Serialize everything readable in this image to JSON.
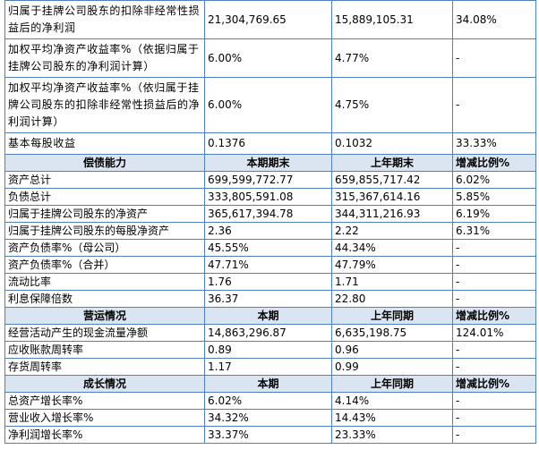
{
  "top_rows": [
    [
      "归属于挂牌公司股东的扣除非经常性损益后的净利润",
      "21,304,769.65",
      "15,889,105.31",
      "34.08%"
    ],
    [
      "加权平均净资产收益率%（依据归属于挂牌公司股东的净利润计算）",
      "6.00%",
      "4.77%",
      "-"
    ],
    [
      "加权平均净资产收益率%（依归属于挂牌公司股东的扣除非经常性损益后的净利润计算）",
      "6.00%",
      "4.75%",
      "-"
    ],
    [
      "基本每股收益",
      "0.1376",
      "0.1032",
      "33.33%"
    ]
  ],
  "sections": [
    {
      "header": [
        "偿债能力",
        "本期期末",
        "上年期末",
        "增减比例%"
      ],
      "rows": [
        [
          "资产总计",
          "699,599,772.77",
          "659,855,717.42",
          "6.02%"
        ],
        [
          "负债总计",
          "333,805,591.08",
          "315,367,614.16",
          "5.85%"
        ],
        [
          "归属于挂牌公司股东的净资产",
          "365,617,394.78",
          "344,311,216.93",
          "6.19%"
        ],
        [
          "归属于挂牌公司股东的每股净资产",
          "2.36",
          "2.22",
          "6.31%"
        ],
        [
          "资产负债率%（母公司）",
          "45.55%",
          "44.34%",
          "-"
        ],
        [
          "资产负债率%（合并）",
          "47.71%",
          "47.79%",
          "-"
        ],
        [
          "流动比率",
          "1.76",
          "1.71",
          "-"
        ],
        [
          "利息保障倍数",
          "36.37",
          "22.80",
          "-"
        ]
      ]
    },
    {
      "header": [
        "营运情况",
        "本期",
        "上年同期",
        "增减比例%"
      ],
      "rows": [
        [
          "经营活动产生的现金流量净额",
          "14,863,296.87",
          "6,635,198.75",
          "124.01%"
        ],
        [
          "应收账款周转率",
          "0.89",
          "0.96",
          "-"
        ],
        [
          "存货周转率",
          "1.17",
          "0.99",
          "-"
        ]
      ]
    },
    {
      "header": [
        "成长情况",
        "本期",
        "上年同期",
        "增减比例%"
      ],
      "rows": [
        [
          "总资产增长率%",
          "6.02%",
          "4.14%",
          "-"
        ],
        [
          "营业收入增长率%",
          "34.32%",
          "14.43%",
          "-"
        ],
        [
          "净利润增长率%",
          "33.37%",
          "23.33%",
          "-"
        ]
      ]
    }
  ]
}
